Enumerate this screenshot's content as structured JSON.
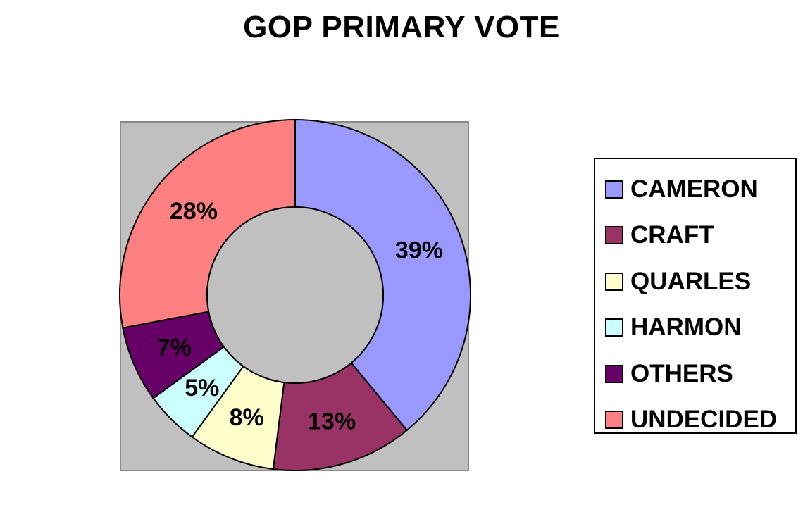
{
  "chart_data": {
    "type": "pie",
    "variant": "donut",
    "title": "GOP PRIMARY VOTE",
    "categories": [
      "CAMERON",
      "CRAFT",
      "QUARLES",
      "HARMON",
      "OTHERS",
      "UNDECIDED"
    ],
    "values": [
      39,
      13,
      8,
      5,
      7,
      28
    ],
    "labels": [
      "39%",
      "13%",
      "8%",
      "5%",
      "7%",
      "28%"
    ],
    "colors": [
      "#9999ff",
      "#993366",
      "#ffffcc",
      "#ccffff",
      "#660066",
      "#ff8080"
    ],
    "unit": "%",
    "legend_position": "right",
    "plot_background": "#c0c0c0"
  }
}
